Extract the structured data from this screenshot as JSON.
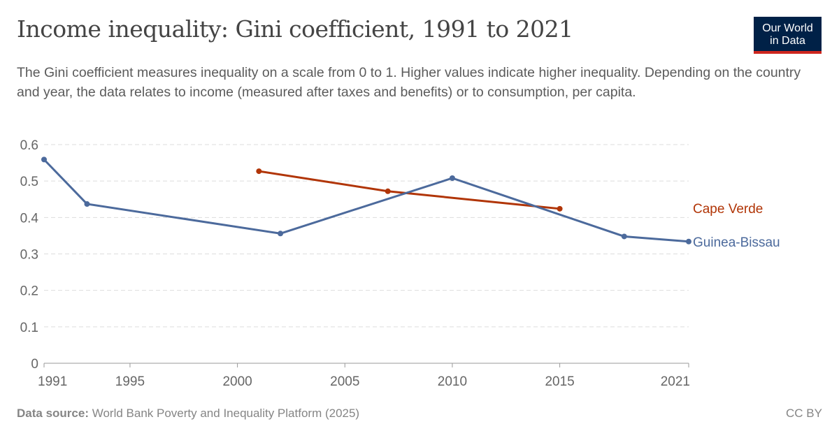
{
  "title": "Income inequality: Gini coefficient, 1991 to 2021",
  "subtitle": "The Gini coefficient measures inequality on a scale from 0 to 1. Higher values indicate higher inequality. Depending on the country and year, the data relates to income (measured after taxes and benefits) or to consumption, per capita.",
  "logo": {
    "line1": "Our World",
    "line2": "in Data"
  },
  "footer": {
    "source_label": "Data source:",
    "source": "World Bank Poverty and Inequality Platform (2025)",
    "license": "CC BY"
  },
  "chart_data": {
    "type": "line",
    "xlim": [
      1991,
      2021
    ],
    "ylim": [
      0,
      0.6
    ],
    "x_ticks": [
      1991,
      1995,
      2000,
      2005,
      2010,
      2015,
      2021
    ],
    "y_ticks": [
      0,
      0.1,
      0.2,
      0.3,
      0.4,
      0.5,
      0.6
    ],
    "y_tick_labels": [
      "0",
      "0.1",
      "0.2",
      "0.3",
      "0.4",
      "0.5",
      "0.6"
    ],
    "grid": "horizontal dashed",
    "legend": "right, inline labels",
    "series": [
      {
        "name": "Cape Verde",
        "color": "#b13507",
        "x": [
          2001,
          2007,
          2015
        ],
        "y": [
          0.527,
          0.472,
          0.424
        ]
      },
      {
        "name": "Guinea-Bissau",
        "color": "#4c6a9c",
        "x": [
          1991,
          1993,
          2002,
          2010,
          2018,
          2021
        ],
        "y": [
          0.559,
          0.437,
          0.356,
          0.508,
          0.348,
          0.334
        ]
      }
    ]
  }
}
